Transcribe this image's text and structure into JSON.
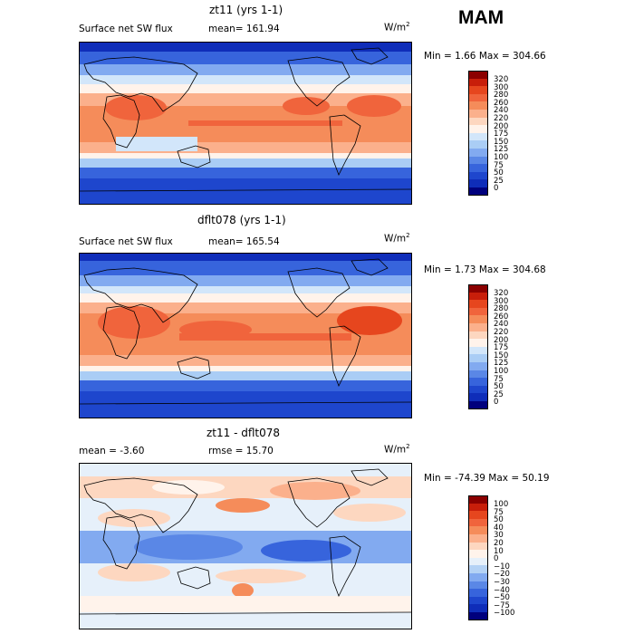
{
  "season": "MAM",
  "units": "W/m",
  "units_sup": "2",
  "panels": [
    {
      "title": "zt11 (yrs 1-1)",
      "subtitle_left": "Surface net SW flux",
      "subtitle_right": "mean= 161.94",
      "minmax": "Min =    1.66 Max = 304.66"
    },
    {
      "title": "dflt078 (yrs 1-1)",
      "subtitle_left": "Surface net SW flux",
      "subtitle_right": "mean= 165.54",
      "minmax": "Min =    1.73 Max = 304.68"
    },
    {
      "title": "zt11 - dflt078",
      "subtitle_left": "mean =   -3.60",
      "subtitle_right": "rmse =   15.70",
      "minmax": "Min = -74.39 Max =  50.19"
    }
  ],
  "colorbars": {
    "abs": {
      "labels": [
        "320",
        "300",
        "280",
        "260",
        "240",
        "220",
        "200",
        "175",
        "150",
        "125",
        "100",
        "75",
        "50",
        "25",
        "0"
      ],
      "colors": [
        "#8b0000",
        "#c81e0a",
        "#e6461e",
        "#f0643c",
        "#f58c5a",
        "#fbb08c",
        "#fdd7c0",
        "#fff3eb",
        "#d2e6fa",
        "#aacdf5",
        "#82aaf0",
        "#5a87e6",
        "#3764dc",
        "#1e46cd",
        "#0f2db9",
        "#00007d"
      ]
    },
    "diff": {
      "labels": [
        "100",
        "75",
        "50",
        "40",
        "30",
        "20",
        "10",
        "0",
        "−10",
        "−20",
        "−30",
        "−40",
        "−50",
        "−75",
        "−100"
      ],
      "colors": [
        "#8b0000",
        "#c81e0a",
        "#e6461e",
        "#f0643c",
        "#f58c5a",
        "#fbb08c",
        "#fdd7c0",
        "#fff3eb",
        "#e6f0fa",
        "#b4d2f5",
        "#82aaf0",
        "#5a87e6",
        "#3764dc",
        "#1e46cd",
        "#0f2db9",
        "#00007d"
      ]
    }
  },
  "chart_data": [
    {
      "type": "heatmap",
      "title": "zt11 (yrs 1-1)",
      "subtitle": "Surface net SW flux",
      "mean": 161.94,
      "min": 1.66,
      "max": 304.66,
      "units": "W/m2",
      "levels": [
        0,
        25,
        50,
        75,
        100,
        125,
        150,
        175,
        200,
        220,
        240,
        260,
        280,
        300,
        320
      ]
    },
    {
      "type": "heatmap",
      "title": "dflt078 (yrs 1-1)",
      "subtitle": "Surface net SW flux",
      "mean": 165.54,
      "min": 1.73,
      "max": 304.68,
      "units": "W/m2",
      "levels": [
        0,
        25,
        50,
        75,
        100,
        125,
        150,
        175,
        200,
        220,
        240,
        260,
        280,
        300,
        320
      ]
    },
    {
      "type": "heatmap",
      "title": "zt11 - dflt078",
      "mean": -3.6,
      "rmse": 15.7,
      "min": -74.39,
      "max": 50.19,
      "units": "W/m2",
      "levels": [
        -100,
        -75,
        -50,
        -40,
        -30,
        -20,
        -10,
        0,
        10,
        20,
        30,
        40,
        50,
        75,
        100
      ]
    }
  ]
}
